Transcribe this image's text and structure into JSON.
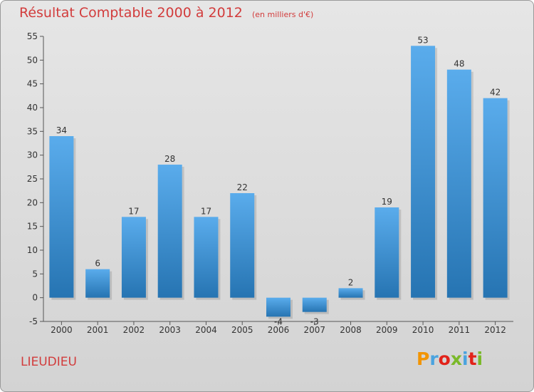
{
  "header": {
    "title": "Résultat Comptable 2000 à 2012",
    "subtitle": "(en milliers d'€)"
  },
  "footer": {
    "place": "LIEUDIEU",
    "logo": {
      "text": "Proxiti",
      "colors": [
        "#f29400",
        "#4aa3df",
        "#e2231a",
        "#7ab929",
        "#4aa3df",
        "#e2231a",
        "#7ab929"
      ]
    }
  },
  "colors": {
    "bar_top": "#5aacec",
    "bar_bottom": "#2674b2",
    "axis": "#555555",
    "grid": "#c8c8c8"
  },
  "chart_data": {
    "type": "bar",
    "categories": [
      "2000",
      "2001",
      "2002",
      "2003",
      "2004",
      "2005",
      "2006",
      "2007",
      "2008",
      "2009",
      "2010",
      "2011",
      "2012"
    ],
    "values": [
      34,
      6,
      17,
      28,
      17,
      22,
      -4,
      -3,
      2,
      19,
      53,
      48,
      42
    ],
    "ylim": [
      -5,
      55
    ],
    "yticks": [
      -5,
      0,
      5,
      10,
      15,
      20,
      25,
      30,
      35,
      40,
      45,
      50,
      55
    ],
    "grid": false,
    "xlabel": "",
    "ylabel": ""
  }
}
